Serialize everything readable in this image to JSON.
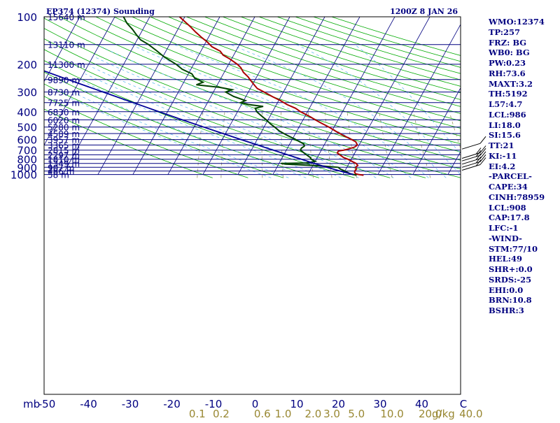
{
  "chart_data": {
    "type": "skew-t log-p sounding",
    "title": "EP374 (12374) Sounding",
    "valid_time": "1200Z  8 JAN 26",
    "xlabel": "°C",
    "mixing_ratio_label": "g/kg",
    "pressure_levels": [
      100,
      200,
      300,
      400,
      500,
      600,
      700,
      800,
      900,
      1000
    ],
    "pressure_unit_label": "mb",
    "temperature_ticks": [
      -50,
      -40,
      -30,
      -20,
      -10,
      0,
      10,
      20,
      30,
      40
    ],
    "temperature_tick_labels": [
      "-50",
      "-40",
      "-30",
      "-20",
      "-10",
      "0",
      "10",
      "20",
      "30",
      "40",
      "C"
    ],
    "mixing_ratio_ticks": [
      0.1,
      0.2,
      0.6,
      1.0,
      2.0,
      3.0,
      5.0,
      10.0,
      20.0,
      40.0
    ],
    "mixing_ratio_tick_labels": [
      "0.1",
      "0.2",
      "0.6",
      "1.0",
      "2.0",
      "3.0",
      "5.0",
      "10.0",
      "20.0",
      "40.0"
    ],
    "height_labels": [
      {
        "p": 100,
        "label": "15640 m"
      },
      {
        "p": 150,
        "label": "13110 m"
      },
      {
        "p": 200,
        "label": "11300 m"
      },
      {
        "p": 250,
        "label": "9890 m"
      },
      {
        "p": 300,
        "label": "8730 m"
      },
      {
        "p": 350,
        "label": "7725 m"
      },
      {
        "p": 400,
        "label": "6830 m"
      },
      {
        "p": 450,
        "label": "6020 m"
      },
      {
        "p": 500,
        "label": "5280 m"
      },
      {
        "p": 550,
        "label": "4589 m"
      },
      {
        "p": 600,
        "label": "3957 m"
      },
      {
        "p": 650,
        "label": "3365 m"
      },
      {
        "p": 700,
        "label": "2815 m"
      },
      {
        "p": 750,
        "label": "2297 m"
      },
      {
        "p": 800,
        "label": "1810 m"
      },
      {
        "p": 850,
        "label": "1349 m"
      },
      {
        "p": 900,
        "label": "907 m"
      },
      {
        "p": 950,
        "label": "486 m"
      },
      {
        "p": 1000,
        "label": "58 m"
      }
    ],
    "series": [
      {
        "name": "temperature",
        "color": "#aa0000",
        "points": [
          [
            1010,
            6.0
          ],
          [
            1000,
            4.5
          ],
          [
            990,
            3.5
          ],
          [
            970,
            3.0
          ],
          [
            950,
            2.8
          ],
          [
            925,
            3.0
          ],
          [
            900,
            2.5
          ],
          [
            875,
            2.8
          ],
          [
            850,
            2.0
          ],
          [
            825,
            0.5
          ],
          [
            800,
            -1.0
          ],
          [
            780,
            -2.5
          ],
          [
            750,
            -4.0
          ],
          [
            730,
            -5.0
          ],
          [
            710,
            -5.0
          ],
          [
            700,
            -3.5
          ],
          [
            690,
            -2.5
          ],
          [
            670,
            -1.0
          ],
          [
            650,
            -0.5
          ],
          [
            620,
            -1.5
          ],
          [
            600,
            -3.0
          ],
          [
            560,
            -6.5
          ],
          [
            530,
            -9.0
          ],
          [
            500,
            -11.5
          ],
          [
            470,
            -14.5
          ],
          [
            450,
            -16.5
          ],
          [
            430,
            -18.5
          ],
          [
            400,
            -22.0
          ],
          [
            380,
            -24.0
          ],
          [
            360,
            -27.0
          ],
          [
            340,
            -29.5
          ],
          [
            320,
            -32.5
          ],
          [
            300,
            -35.5
          ],
          [
            285,
            -38.0
          ],
          [
            270,
            -39.5
          ],
          [
            255,
            -41.0
          ],
          [
            240,
            -42.5
          ],
          [
            225,
            -44.5
          ],
          [
            210,
            -46.0
          ],
          [
            200,
            -47.5
          ],
          [
            185,
            -50.5
          ],
          [
            175,
            -53.0
          ],
          [
            165,
            -54.5
          ],
          [
            155,
            -57.5
          ],
          [
            145,
            -59.5
          ],
          [
            135,
            -62.0
          ],
          [
            125,
            -64.5
          ],
          [
            115,
            -67.0
          ],
          [
            100,
            -71.5
          ]
        ]
      },
      {
        "name": "dewpoint",
        "color": "#004400",
        "points": [
          [
            1010,
            4.0
          ],
          [
            1000,
            3.0
          ],
          [
            990,
            2.0
          ],
          [
            970,
            1.0
          ],
          [
            950,
            0.0
          ],
          [
            925,
            -1.5
          ],
          [
            900,
            -2.5
          ],
          [
            880,
            -8.0
          ],
          [
            860,
            -18.0
          ],
          [
            850,
            -19.5
          ],
          [
            845,
            -12.5
          ],
          [
            825,
            -10.0
          ],
          [
            800,
            -11.5
          ],
          [
            780,
            -12.0
          ],
          [
            750,
            -13.5
          ],
          [
            720,
            -15.0
          ],
          [
            700,
            -16.0
          ],
          [
            680,
            -16.0
          ],
          [
            660,
            -15.5
          ],
          [
            640,
            -16.0
          ],
          [
            600,
            -19.0
          ],
          [
            560,
            -22.5
          ],
          [
            530,
            -25.0
          ],
          [
            500,
            -27.0
          ],
          [
            480,
            -28.5
          ],
          [
            450,
            -30.5
          ],
          [
            425,
            -32.5
          ],
          [
            400,
            -34.5
          ],
          [
            380,
            -35.5
          ],
          [
            370,
            -33.5
          ],
          [
            360,
            -38.0
          ],
          [
            350,
            -40.5
          ],
          [
            340,
            -39.5
          ],
          [
            320,
            -43.5
          ],
          [
            300,
            -46.5
          ],
          [
            290,
            -45.0
          ],
          [
            280,
            -49.0
          ],
          [
            270,
            -56.0
          ],
          [
            260,
            -54.5
          ],
          [
            245,
            -57.5
          ],
          [
            230,
            -59.0
          ],
          [
            215,
            -62.5
          ],
          [
            200,
            -65.0
          ],
          [
            180,
            -69.5
          ],
          [
            165,
            -72.5
          ],
          [
            150,
            -76.0
          ],
          [
            140,
            -79.0
          ],
          [
            130,
            -81.0
          ],
          [
            120,
            -83.0
          ],
          [
            110,
            -85.5
          ],
          [
            100,
            -87.5
          ]
        ]
      },
      {
        "name": "parcel",
        "color": "#000099",
        "points": [
          [
            1000,
            3.0
          ],
          [
            960,
            -0.5
          ],
          [
            908,
            -5.0
          ],
          [
            850,
            -10.0
          ],
          [
            800,
            -14.3
          ],
          [
            750,
            -18.9
          ],
          [
            700,
            -23.8
          ],
          [
            650,
            -29.0
          ],
          [
            600,
            -34.6
          ],
          [
            550,
            -40.7
          ],
          [
            500,
            -47.3
          ],
          [
            450,
            -54.5
          ],
          [
            400,
            -62.4
          ],
          [
            350,
            -71.3
          ],
          [
            300,
            -81.5
          ],
          [
            250,
            -93.5
          ],
          [
            200,
            -108.0
          ],
          [
            150,
            -126.9
          ],
          [
            125,
            -139.3
          ]
        ]
      }
    ],
    "wind_barbs": [
      {
        "p": 690,
        "label": "wind barb 690 mb"
      },
      {
        "p": 790,
        "label": "wind barb 790 mb"
      },
      {
        "p": 820,
        "label": "wind barb 820 mb"
      },
      {
        "p": 860,
        "label": "wind barb 860 mb"
      },
      {
        "p": 900,
        "label": "wind barb 900 mb"
      },
      {
        "p": 940,
        "label": "wind barb 940 mb"
      }
    ],
    "indices": [
      "WMO:12374",
      "TP:257",
      "FRZ: BG",
      "WB0: BG",
      "PW:0.23",
      "RH:73.6",
      "MAXT:3.2",
      "TH:5192",
      "L57:4.7",
      "LCL:986",
      "LI:18.0",
      "SI:15.6",
      "TT:21",
      "KI:-11",
      "EI:4.2",
      "-PARCEL-",
      "CAPE:34",
      "CINH:78959",
      "LCL:908",
      "CAP:17.8",
      "LFC:-1",
      "-WIND-",
      "STM:77/10",
      "HEL:49",
      "SHR+:0.0",
      "SRDS:-25",
      "EHI:0.0",
      "BRN:10.8",
      "BSHR:3"
    ],
    "colors": {
      "isobar": "#000080",
      "isotherm": "#000080",
      "dry_adiabat": "#00aa00",
      "moist_adiabat": "#66bbee",
      "mixing_ratio": "#999966",
      "axis_text": "#000080",
      "mixing_text": "#998833",
      "frame": "#000000"
    }
  }
}
